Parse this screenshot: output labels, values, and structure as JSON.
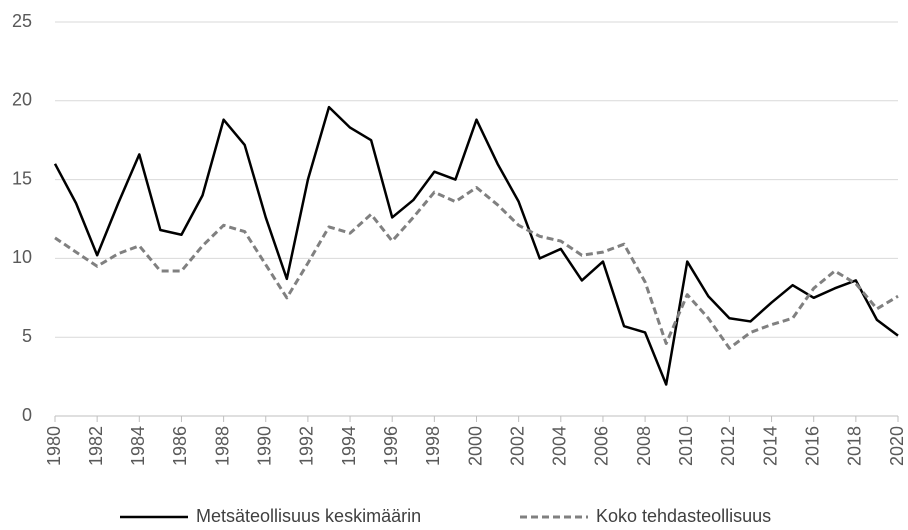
{
  "chart_data": {
    "type": "line",
    "x": [
      1980,
      1981,
      1982,
      1983,
      1984,
      1985,
      1986,
      1987,
      1988,
      1989,
      1990,
      1991,
      1992,
      1993,
      1994,
      1995,
      1996,
      1997,
      1998,
      1999,
      2000,
      2001,
      2002,
      2003,
      2004,
      2005,
      2006,
      2007,
      2008,
      2009,
      2010,
      2011,
      2012,
      2013,
      2014,
      2015,
      2016,
      2017,
      2018,
      2019,
      2020
    ],
    "series": [
      {
        "name": "Metsäteollisuus keskimäärin",
        "color": "#000000",
        "line_style": "solid",
        "values": [
          16.0,
          13.5,
          10.2,
          13.5,
          16.6,
          11.8,
          11.5,
          14.0,
          18.8,
          17.2,
          12.6,
          8.7,
          15.0,
          19.6,
          18.3,
          17.5,
          12.6,
          13.7,
          15.5,
          15.0,
          18.8,
          16.0,
          13.6,
          10.0,
          10.6,
          8.6,
          9.8,
          5.7,
          5.3,
          2.0,
          9.8,
          7.6,
          6.2,
          6.0,
          7.2,
          8.3,
          7.5,
          8.1,
          8.6,
          6.1,
          5.1
        ]
      },
      {
        "name": "Koko tehdasteollisuus",
        "color": "#808080",
        "line_style": "dashed",
        "values": [
          11.3,
          10.4,
          9.5,
          10.3,
          10.8,
          9.2,
          9.2,
          10.8,
          12.1,
          11.7,
          9.6,
          7.5,
          9.7,
          12.0,
          11.6,
          12.8,
          11.1,
          12.6,
          14.2,
          13.6,
          14.5,
          13.4,
          12.1,
          11.4,
          11.1,
          10.2,
          10.4,
          10.9,
          8.5,
          4.6,
          7.7,
          6.2,
          4.3,
          5.3,
          5.8,
          6.2,
          8.1,
          9.2,
          8.4,
          6.8,
          7.6
        ]
      }
    ],
    "xlim": [
      1980,
      2020
    ],
    "xticks": [
      1980,
      1982,
      1984,
      1986,
      1988,
      1990,
      1992,
      1994,
      1996,
      1998,
      2000,
      2002,
      2004,
      2006,
      2008,
      2010,
      2012,
      2014,
      2016,
      2018,
      2020
    ],
    "ylim": [
      0,
      25
    ],
    "yticks": [
      0,
      5,
      10,
      15,
      20,
      25
    ],
    "grid": true,
    "legend": "bottom"
  }
}
